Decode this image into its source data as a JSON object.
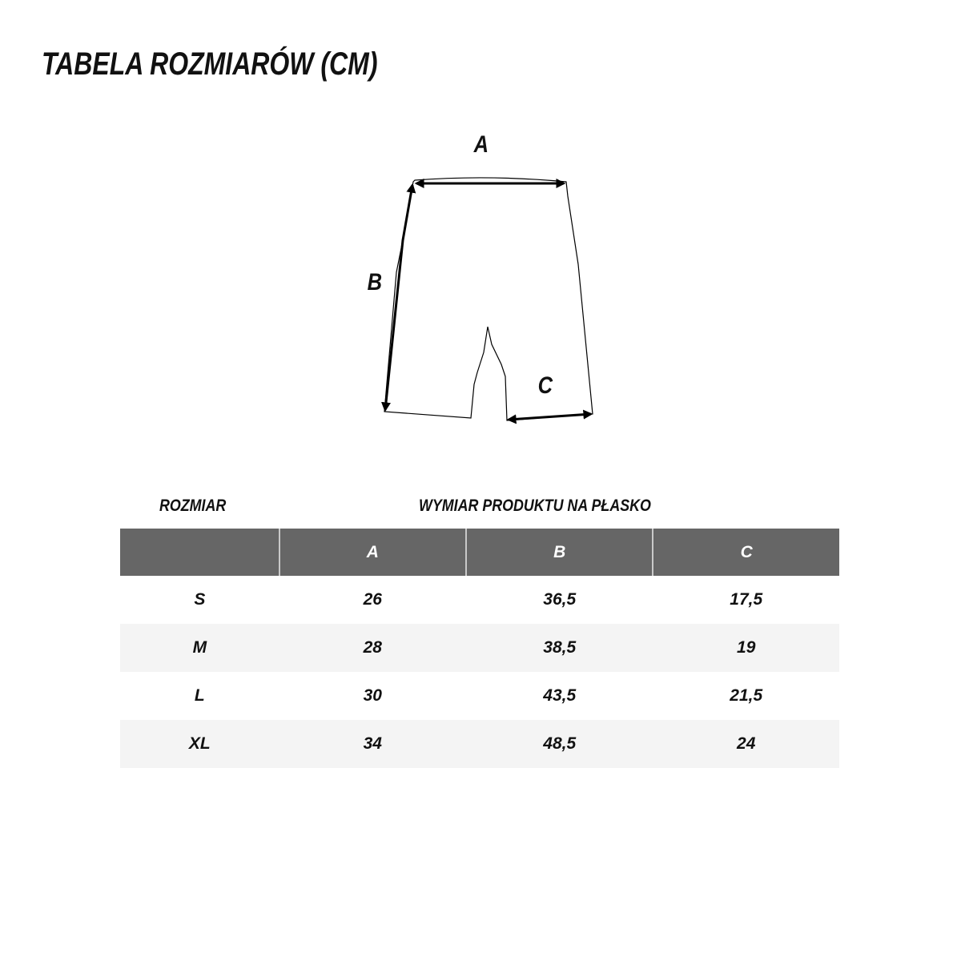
{
  "title": "TABELA ROZMIARÓW (CM)",
  "diagram": {
    "labels": [
      "A",
      "B",
      "C"
    ]
  },
  "table": {
    "size_heading": "ROZMIAR",
    "measure_heading": "WYMIAR PRODUKTU NA PŁASKO",
    "columns": [
      "",
      "A",
      "B",
      "C"
    ],
    "rows": [
      [
        "S",
        "26",
        "36,5",
        "17,5"
      ],
      [
        "M",
        "28",
        "38,5",
        "19"
      ],
      [
        "L",
        "30",
        "43,5",
        "21,5"
      ],
      [
        "XL",
        "34",
        "48,5",
        "24"
      ]
    ],
    "header_color": "#666666",
    "stripe_color": "#f4f4f4"
  }
}
